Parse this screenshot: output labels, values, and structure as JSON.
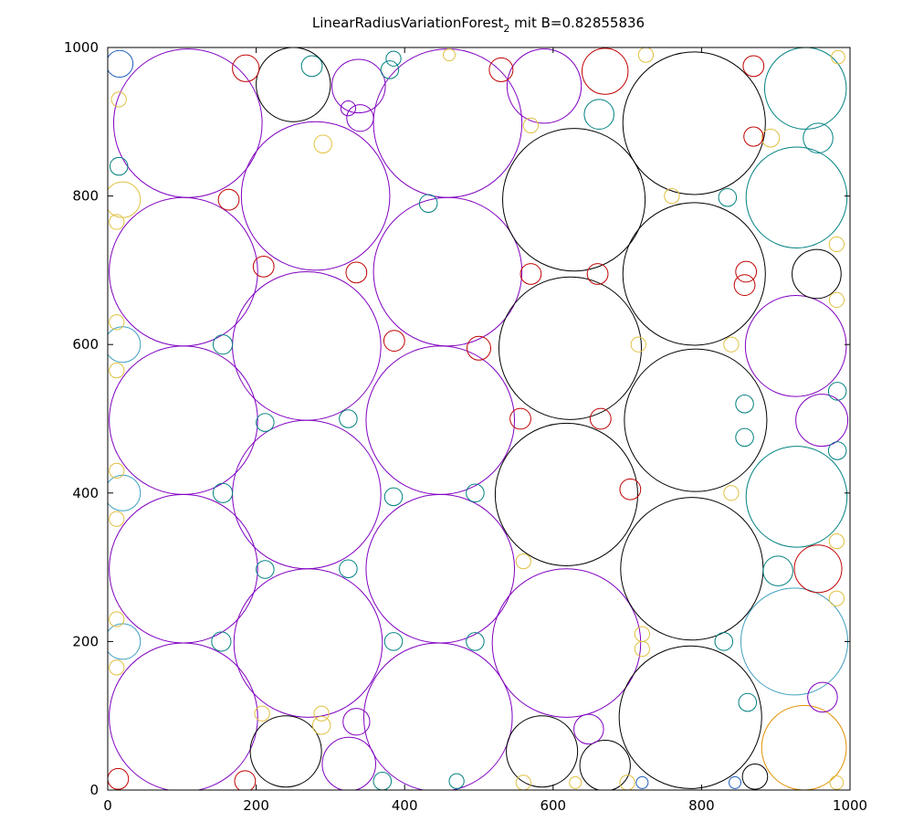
{
  "chart_data": {
    "type": "scatter",
    "title": {
      "main": "LinearRadiusVariationForest",
      "subscript": "2",
      "suffix": " mit B=0.82855836"
    },
    "xlabel": "",
    "ylabel": "",
    "xlim": [
      0,
      1000
    ],
    "ylim": [
      0,
      1000
    ],
    "x_ticks": [
      "0",
      "200",
      "400",
      "600",
      "800",
      "1000"
    ],
    "y_ticks": [
      "0",
      "200",
      "400",
      "600",
      "800",
      "1000"
    ],
    "grid": false,
    "legend": "none",
    "colors": {
      "black": "#000000",
      "purple": "#8000c0",
      "teal": "#008080",
      "cyan": "#40a0c0",
      "red": "#c00000",
      "yellow": "#e0c040",
      "orange": "#e09000",
      "blue": "#2060c0"
    },
    "circles": [
      {
        "x": 108,
        "y": 898,
        "r": 100,
        "c": "purple"
      },
      {
        "x": 102,
        "y": 698,
        "r": 100,
        "c": "purple"
      },
      {
        "x": 102,
        "y": 498,
        "r": 100,
        "c": "purple"
      },
      {
        "x": 102,
        "y": 298,
        "r": 100,
        "c": "purple"
      },
      {
        "x": 102,
        "y": 98,
        "r": 100,
        "c": "purple"
      },
      {
        "x": 280,
        "y": 800,
        "r": 100,
        "c": "purple"
      },
      {
        "x": 268,
        "y": 598,
        "r": 100,
        "c": "purple"
      },
      {
        "x": 268,
        "y": 398,
        "r": 100,
        "c": "purple"
      },
      {
        "x": 270,
        "y": 198,
        "r": 100,
        "c": "purple"
      },
      {
        "x": 458,
        "y": 898,
        "r": 100,
        "c": "purple"
      },
      {
        "x": 458,
        "y": 698,
        "r": 100,
        "c": "purple"
      },
      {
        "x": 448,
        "y": 498,
        "r": 100,
        "c": "purple"
      },
      {
        "x": 448,
        "y": 298,
        "r": 100,
        "c": "purple"
      },
      {
        "x": 445,
        "y": 98,
        "r": 100,
        "c": "purple"
      },
      {
        "x": 618,
        "y": 198,
        "r": 100,
        "c": "purple"
      },
      {
        "x": 927,
        "y": 598,
        "r": 68,
        "c": "purple"
      },
      {
        "x": 628,
        "y": 795,
        "r": 96,
        "c": "black"
      },
      {
        "x": 623,
        "y": 595,
        "r": 96,
        "c": "black"
      },
      {
        "x": 618,
        "y": 398,
        "r": 96,
        "c": "black"
      },
      {
        "x": 790,
        "y": 898,
        "r": 96,
        "c": "black"
      },
      {
        "x": 790,
        "y": 695,
        "r": 96,
        "c": "black"
      },
      {
        "x": 792,
        "y": 498,
        "r": 96,
        "c": "black"
      },
      {
        "x": 787,
        "y": 298,
        "r": 96,
        "c": "black"
      },
      {
        "x": 785,
        "y": 98,
        "r": 96,
        "c": "black"
      },
      {
        "x": 250,
        "y": 950,
        "r": 50,
        "c": "black"
      },
      {
        "x": 240,
        "y": 52,
        "r": 48,
        "c": "black"
      },
      {
        "x": 585,
        "y": 52,
        "r": 48,
        "c": "black"
      },
      {
        "x": 670,
        "y": 33,
        "r": 34,
        "c": "black"
      },
      {
        "x": 955,
        "y": 695,
        "r": 33,
        "c": "black"
      },
      {
        "x": 872,
        "y": 18,
        "r": 17,
        "c": "black"
      },
      {
        "x": 940,
        "y": 945,
        "r": 55,
        "c": "teal"
      },
      {
        "x": 928,
        "y": 798,
        "r": 68,
        "c": "teal"
      },
      {
        "x": 928,
        "y": 395,
        "r": 68,
        "c": "teal"
      },
      {
        "x": 925,
        "y": 200,
        "r": 72,
        "c": "cyan"
      },
      {
        "x": 938,
        "y": 57,
        "r": 57,
        "c": "orange"
      },
      {
        "x": 338,
        "y": 948,
        "r": 36,
        "c": "purple"
      },
      {
        "x": 588,
        "y": 948,
        "r": 50,
        "c": "purple"
      },
      {
        "x": 962,
        "y": 498,
        "r": 35,
        "c": "purple"
      },
      {
        "x": 325,
        "y": 35,
        "r": 36,
        "c": "purple"
      },
      {
        "x": 648,
        "y": 82,
        "r": 20,
        "c": "purple"
      },
      {
        "x": 335,
        "y": 92,
        "r": 18,
        "c": "purple"
      },
      {
        "x": 963,
        "y": 125,
        "r": 20,
        "c": "purple"
      },
      {
        "x": 670,
        "y": 968,
        "r": 31,
        "c": "red"
      },
      {
        "x": 957,
        "y": 298,
        "r": 32,
        "c": "red"
      },
      {
        "x": 16,
        "y": 978,
        "r": 18,
        "c": "blue"
      },
      {
        "x": 14,
        "y": 15,
        "r": 14,
        "c": "red"
      },
      {
        "x": 186,
        "y": 972,
        "r": 18,
        "c": "red"
      },
      {
        "x": 290,
        "y": 870,
        "r": 12,
        "c": "yellow"
      },
      {
        "x": 340,
        "y": 905,
        "r": 18,
        "c": "purple"
      },
      {
        "x": 380,
        "y": 970,
        "r": 12,
        "c": "teal"
      },
      {
        "x": 530,
        "y": 970,
        "r": 16,
        "c": "red"
      },
      {
        "x": 570,
        "y": 895,
        "r": 10,
        "c": "yellow"
      },
      {
        "x": 725,
        "y": 990,
        "r": 10,
        "c": "yellow"
      },
      {
        "x": 870,
        "y": 975,
        "r": 14,
        "c": "red"
      },
      {
        "x": 984,
        "y": 987,
        "r": 9,
        "c": "yellow"
      },
      {
        "x": 893,
        "y": 878,
        "r": 12,
        "c": "yellow"
      },
      {
        "x": 957,
        "y": 878,
        "r": 20,
        "c": "teal"
      },
      {
        "x": 870,
        "y": 880,
        "r": 13,
        "c": "red"
      },
      {
        "x": 662,
        "y": 910,
        "r": 20,
        "c": "teal"
      },
      {
        "x": 20,
        "y": 795,
        "r": 24,
        "c": "yellow"
      },
      {
        "x": 163,
        "y": 795,
        "r": 14,
        "c": "red"
      },
      {
        "x": 210,
        "y": 705,
        "r": 14,
        "c": "red"
      },
      {
        "x": 275,
        "y": 975,
        "r": 14,
        "c": "teal"
      },
      {
        "x": 324,
        "y": 918,
        "r": 10,
        "c": "purple"
      },
      {
        "x": 432,
        "y": 790,
        "r": 12,
        "c": "teal"
      },
      {
        "x": 335,
        "y": 697,
        "r": 14,
        "c": "red"
      },
      {
        "x": 570,
        "y": 695,
        "r": 14,
        "c": "red"
      },
      {
        "x": 660,
        "y": 695,
        "r": 14,
        "c": "red"
      },
      {
        "x": 860,
        "y": 698,
        "r": 14,
        "c": "red"
      },
      {
        "x": 858,
        "y": 680,
        "r": 14,
        "c": "red"
      },
      {
        "x": 500,
        "y": 595,
        "r": 16,
        "c": "red"
      },
      {
        "x": 386,
        "y": 605,
        "r": 14,
        "c": "red"
      },
      {
        "x": 556,
        "y": 500,
        "r": 14,
        "c": "red"
      },
      {
        "x": 664,
        "y": 500,
        "r": 14,
        "c": "red"
      },
      {
        "x": 704,
        "y": 405,
        "r": 14,
        "c": "red"
      },
      {
        "x": 20,
        "y": 600,
        "r": 24,
        "c": "cyan"
      },
      {
        "x": 20,
        "y": 400,
        "r": 24,
        "c": "cyan"
      },
      {
        "x": 20,
        "y": 200,
        "r": 24,
        "c": "cyan"
      },
      {
        "x": 155,
        "y": 600,
        "r": 13,
        "c": "teal"
      },
      {
        "x": 155,
        "y": 400,
        "r": 13,
        "c": "teal"
      },
      {
        "x": 153,
        "y": 200,
        "r": 13,
        "c": "teal"
      },
      {
        "x": 212,
        "y": 495,
        "r": 12,
        "c": "teal"
      },
      {
        "x": 324,
        "y": 500,
        "r": 12,
        "c": "teal"
      },
      {
        "x": 212,
        "y": 297,
        "r": 12,
        "c": "teal"
      },
      {
        "x": 324,
        "y": 298,
        "r": 12,
        "c": "teal"
      },
      {
        "x": 385,
        "y": 395,
        "r": 12,
        "c": "teal"
      },
      {
        "x": 385,
        "y": 200,
        "r": 12,
        "c": "teal"
      },
      {
        "x": 495,
        "y": 400,
        "r": 12,
        "c": "teal"
      },
      {
        "x": 495,
        "y": 200,
        "r": 12,
        "c": "teal"
      },
      {
        "x": 858,
        "y": 520,
        "r": 12,
        "c": "teal"
      },
      {
        "x": 858,
        "y": 475,
        "r": 12,
        "c": "teal"
      },
      {
        "x": 983,
        "y": 537,
        "r": 12,
        "c": "teal"
      },
      {
        "x": 983,
        "y": 457,
        "r": 12,
        "c": "teal"
      },
      {
        "x": 903,
        "y": 295,
        "r": 20,
        "c": "teal"
      },
      {
        "x": 830,
        "y": 200,
        "r": 12,
        "c": "teal"
      },
      {
        "x": 862,
        "y": 118,
        "r": 12,
        "c": "teal"
      },
      {
        "x": 835,
        "y": 798,
        "r": 12,
        "c": "teal"
      },
      {
        "x": 15,
        "y": 840,
        "r": 12,
        "c": "teal"
      },
      {
        "x": 370,
        "y": 12,
        "r": 12,
        "c": "teal"
      },
      {
        "x": 385,
        "y": 985,
        "r": 10,
        "c": "teal"
      },
      {
        "x": 470,
        "y": 12,
        "r": 10,
        "c": "teal"
      },
      {
        "x": 185,
        "y": 12,
        "r": 14,
        "c": "red"
      },
      {
        "x": 460,
        "y": 990,
        "r": 8,
        "c": "yellow"
      },
      {
        "x": 760,
        "y": 800,
        "r": 10,
        "c": "yellow"
      },
      {
        "x": 715,
        "y": 600,
        "r": 10,
        "c": "yellow"
      },
      {
        "x": 840,
        "y": 600,
        "r": 10,
        "c": "yellow"
      },
      {
        "x": 840,
        "y": 400,
        "r": 10,
        "c": "yellow"
      },
      {
        "x": 982,
        "y": 735,
        "r": 10,
        "c": "yellow"
      },
      {
        "x": 982,
        "y": 660,
        "r": 10,
        "c": "yellow"
      },
      {
        "x": 982,
        "y": 335,
        "r": 10,
        "c": "yellow"
      },
      {
        "x": 982,
        "y": 258,
        "r": 10,
        "c": "yellow"
      },
      {
        "x": 982,
        "y": 10,
        "r": 9,
        "c": "yellow"
      },
      {
        "x": 208,
        "y": 103,
        "r": 10,
        "c": "yellow"
      },
      {
        "x": 288,
        "y": 103,
        "r": 10,
        "c": "yellow"
      },
      {
        "x": 288,
        "y": 87,
        "r": 12,
        "c": "yellow"
      },
      {
        "x": 560,
        "y": 308,
        "r": 10,
        "c": "yellow"
      },
      {
        "x": 720,
        "y": 210,
        "r": 10,
        "c": "yellow"
      },
      {
        "x": 720,
        "y": 190,
        "r": 10,
        "c": "yellow"
      },
      {
        "x": 15,
        "y": 930,
        "r": 10,
        "c": "yellow"
      },
      {
        "x": 12,
        "y": 765,
        "r": 10,
        "c": "yellow"
      },
      {
        "x": 12,
        "y": 630,
        "r": 10,
        "c": "yellow"
      },
      {
        "x": 12,
        "y": 565,
        "r": 10,
        "c": "yellow"
      },
      {
        "x": 12,
        "y": 430,
        "r": 10,
        "c": "yellow"
      },
      {
        "x": 12,
        "y": 365,
        "r": 10,
        "c": "yellow"
      },
      {
        "x": 12,
        "y": 230,
        "r": 10,
        "c": "yellow"
      },
      {
        "x": 12,
        "y": 165,
        "r": 10,
        "c": "yellow"
      },
      {
        "x": 560,
        "y": 10,
        "r": 10,
        "c": "yellow"
      },
      {
        "x": 630,
        "y": 10,
        "r": 8,
        "c": "yellow"
      },
      {
        "x": 700,
        "y": 10,
        "r": 10,
        "c": "yellow"
      },
      {
        "x": 720,
        "y": 10,
        "r": 8,
        "c": "blue"
      },
      {
        "x": 845,
        "y": 10,
        "r": 8,
        "c": "blue"
      }
    ]
  }
}
